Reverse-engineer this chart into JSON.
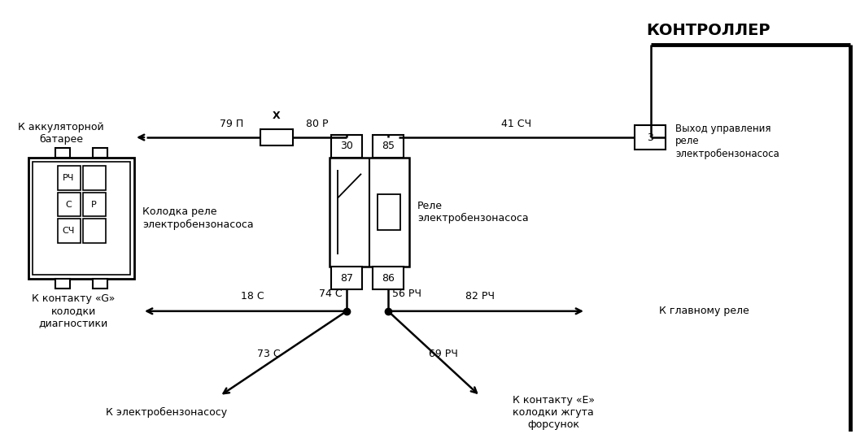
{
  "background_color": "#ffffff",
  "line_color": "#000000",
  "text_color": "#000000",
  "controller_label": "КОНТРОЛЛЕР",
  "relay_label": "Реле\nэлектробензонасоса",
  "connector_label": "Колодка реле\nэлектробензонасоса",
  "battery_label": "К аккуляторной\nбатарее",
  "diag_label": "К контакту «G»\nколодки\nдиагностики",
  "pump_label": "К электробензонасосу",
  "main_relay_label": "К главному реле",
  "injector_label": "К контакту «Е»\nколодки жгута\nфорсунок",
  "output_label": "Выход управления\nреле\nэлектробензонасоса",
  "w79P": "79 П",
  "wX": "X",
  "w80R": "80 Р",
  "w41SCH": "41 СЧ",
  "w3": "3",
  "w30": "30",
  "w85": "85",
  "w87": "87",
  "w86": "86",
  "w74C": "74 С",
  "w56RCH": "56 РЧ",
  "w18C": "18 С",
  "w82RCH": "82 РЧ",
  "w73C": "73 С",
  "w69RCH": "69 РЧ"
}
